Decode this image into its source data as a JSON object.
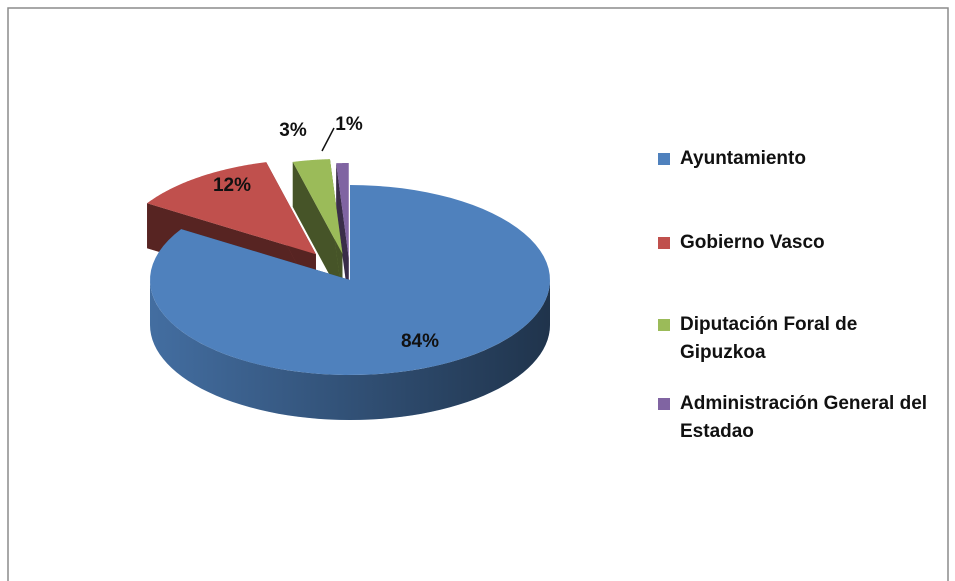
{
  "chart_data": {
    "type": "pie3d",
    "categories": [
      "Ayuntamiento",
      "Gobierno Vasco",
      "Diputación Foral de Gipuzkoa",
      "Administración General del Estadao"
    ],
    "values": [
      84,
      12,
      3,
      1
    ],
    "value_labels": [
      "84%",
      "12%",
      "3%",
      "1%"
    ],
    "colors": [
      "#4f81bd",
      "#c0504d",
      "#9bbb59",
      "#8064a2"
    ],
    "legend": "right"
  }
}
